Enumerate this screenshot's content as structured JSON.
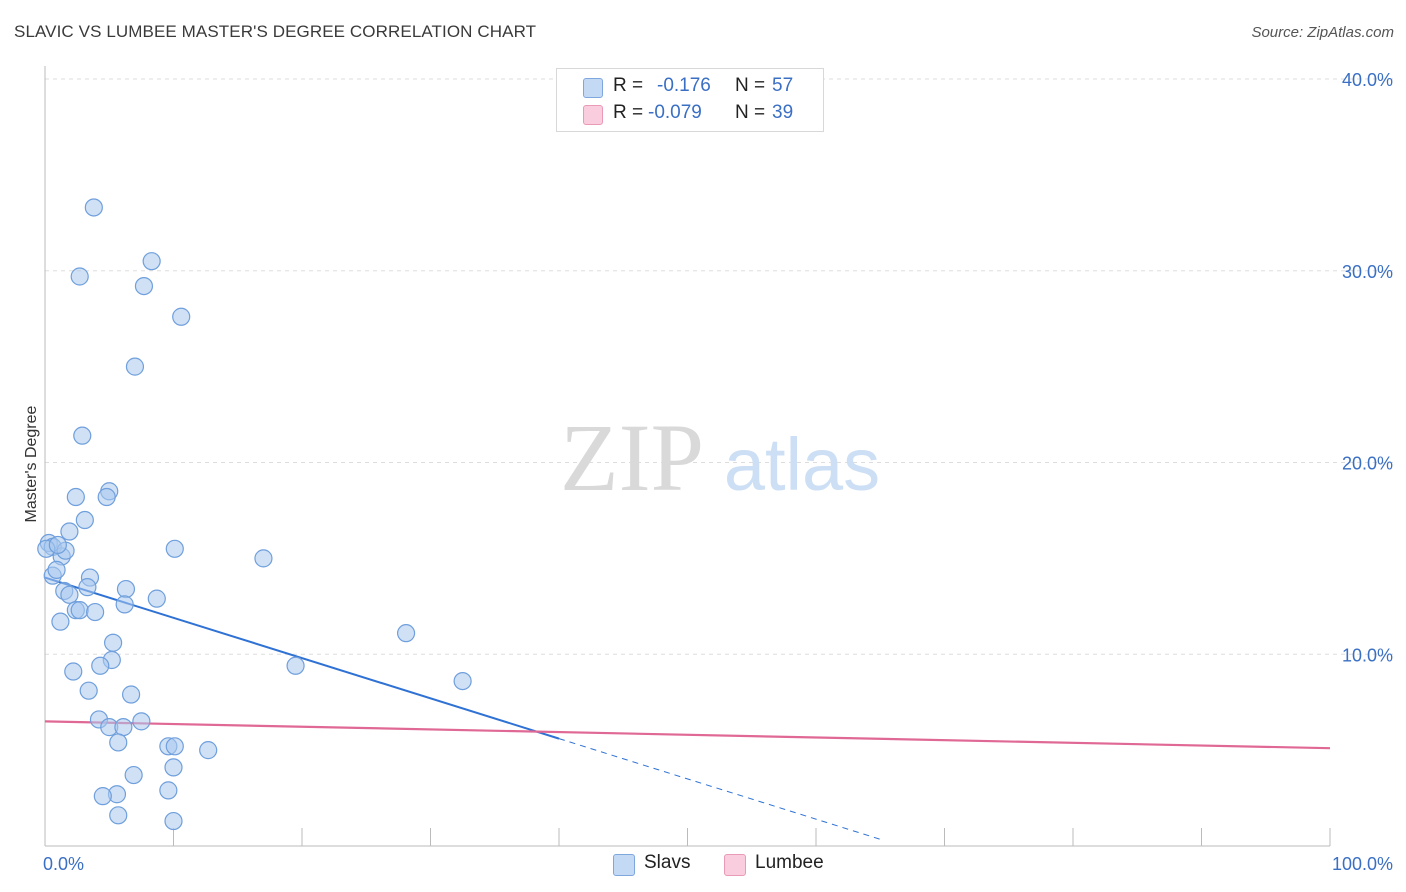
{
  "title": "SLAVIC VS LUMBEE MASTER'S DEGREE CORRELATION CHART",
  "source": "Source: ZipAtlas.com",
  "watermark": {
    "zip": "ZIP",
    "atlas": "atlas"
  },
  "legend": {
    "slavs": {
      "r_label": "R =",
      "r_value": "-0.176",
      "n_label": "N =",
      "n_value": "57"
    },
    "lumbee": {
      "r_label": "R =",
      "r_value": "-0.079",
      "n_label": "N =",
      "n_value": "39"
    }
  },
  "bottom_legend": {
    "slavs": "Slavs",
    "lumbee": "Lumbee"
  },
  "colors": {
    "slavs_fill": "#aac8ef",
    "slavs_stroke": "#6f9fdc",
    "slavs_line": "#2f72d4",
    "lumbee_fill": "#f6bdd0",
    "lumbee_stroke": "#e98fb0",
    "lumbee_line": "#e06894",
    "axis_text": "#3a6fc4",
    "grid": "#dddddd"
  },
  "chart_data": {
    "type": "scatter",
    "title": "SLAVIC VS LUMBEE MASTER'S DEGREE CORRELATION CHART",
    "xlabel": "",
    "ylabel": "Master's Degree",
    "xlim": [
      0,
      100
    ],
    "ylim": [
      0,
      40
    ],
    "x_tick_labels": [
      {
        "value": 0,
        "label": "0.0%"
      },
      {
        "value": 100,
        "label": "100.0%"
      }
    ],
    "y_tick_labels": [
      {
        "value": 10,
        "label": "10.0%"
      },
      {
        "value": 20,
        "label": "20.0%"
      },
      {
        "value": 30,
        "label": "30.0%"
      },
      {
        "value": 40,
        "label": "40.0%"
      }
    ],
    "series": [
      {
        "name": "Slavs",
        "r": -0.176,
        "n": 57,
        "trend": {
          "x0": 0,
          "y0": 14.0,
          "x1": 40,
          "y1": 5.6,
          "dash_to_x": 65
        },
        "points": [
          [
            3.8,
            33.3
          ],
          [
            2.7,
            29.7
          ],
          [
            8.3,
            30.5
          ],
          [
            7.7,
            29.2
          ],
          [
            10.6,
            27.6
          ],
          [
            7.0,
            25.0
          ],
          [
            2.9,
            21.4
          ],
          [
            5.0,
            18.5
          ],
          [
            2.4,
            18.2
          ],
          [
            4.8,
            18.2
          ],
          [
            3.1,
            17.0
          ],
          [
            1.9,
            16.4
          ],
          [
            0.3,
            15.8
          ],
          [
            0.6,
            15.6
          ],
          [
            1.3,
            15.1
          ],
          [
            1.6,
            15.4
          ],
          [
            10.1,
            15.5
          ],
          [
            17.0,
            15.0
          ],
          [
            0.6,
            14.1
          ],
          [
            0.9,
            14.4
          ],
          [
            3.5,
            14.0
          ],
          [
            3.3,
            13.5
          ],
          [
            6.3,
            13.4
          ],
          [
            1.5,
            13.3
          ],
          [
            1.9,
            13.1
          ],
          [
            8.7,
            12.9
          ],
          [
            6.2,
            12.6
          ],
          [
            2.4,
            12.3
          ],
          [
            2.7,
            12.3
          ],
          [
            3.9,
            12.2
          ],
          [
            1.2,
            11.7
          ],
          [
            28.1,
            11.1
          ],
          [
            5.3,
            10.6
          ],
          [
            5.2,
            9.7
          ],
          [
            4.3,
            9.4
          ],
          [
            19.5,
            9.4
          ],
          [
            2.2,
            9.1
          ],
          [
            32.5,
            8.6
          ],
          [
            3.4,
            8.1
          ],
          [
            6.7,
            7.9
          ],
          [
            4.2,
            6.6
          ],
          [
            7.5,
            6.5
          ],
          [
            5.0,
            6.2
          ],
          [
            6.1,
            6.2
          ],
          [
            5.7,
            5.4
          ],
          [
            9.6,
            5.2
          ],
          [
            10.1,
            5.2
          ],
          [
            12.7,
            5.0
          ],
          [
            10.0,
            4.1
          ],
          [
            6.9,
            3.7
          ],
          [
            9.6,
            2.9
          ],
          [
            5.6,
            2.7
          ],
          [
            4.5,
            2.6
          ],
          [
            5.7,
            1.6
          ],
          [
            10.0,
            1.3
          ],
          [
            0.1,
            15.5
          ],
          [
            1.0,
            15.7
          ]
        ]
      },
      {
        "name": "Lumbee",
        "r": -0.079,
        "n": 39,
        "trend": {
          "x0": 0,
          "y0": 6.5,
          "x1": 100,
          "y1": 5.1
        }
      }
    ]
  }
}
